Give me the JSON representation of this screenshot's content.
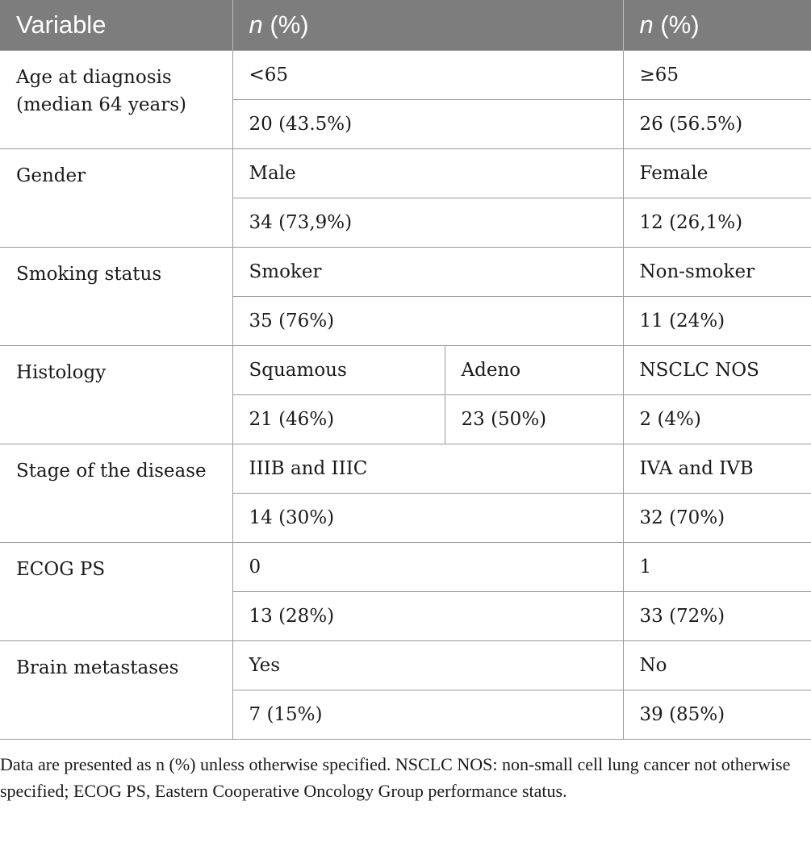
{
  "header": {
    "variable": "Variable",
    "group1_n": "n",
    "group1_pct": "(%)",
    "group2_n": "n",
    "group2_pct": "(%)"
  },
  "rows": [
    {
      "variable": "Age at diagnosis (median 64 years)",
      "categories": [
        "<65",
        "≥65"
      ],
      "values": [
        "20 (43.5%)",
        "26 (56.5%)"
      ]
    },
    {
      "variable": "Gender",
      "categories": [
        "Male",
        "Female"
      ],
      "values": [
        "34 (73,9%)",
        "12 (26,1%)"
      ]
    },
    {
      "variable": "Smoking status",
      "categories": [
        "Smoker",
        "Non-smoker"
      ],
      "values": [
        "35 (76%)",
        "11 (24%)"
      ]
    },
    {
      "variable": "Histology",
      "categories": [
        "Squamous",
        "Adeno",
        "NSCLC NOS"
      ],
      "values": [
        "21 (46%)",
        "23 (50%)",
        "2 (4%)"
      ]
    },
    {
      "variable": "Stage of the disease",
      "categories": [
        "IIIB and IIIC",
        "IVA and IVB"
      ],
      "values": [
        "14 (30%)",
        "32 (70%)"
      ]
    },
    {
      "variable": "ECOG PS",
      "categories": [
        "0",
        "1"
      ],
      "values": [
        "13 (28%)",
        "33 (72%)"
      ]
    },
    {
      "variable": "Brain metastases",
      "categories": [
        "Yes",
        "No"
      ],
      "values": [
        "7 (15%)",
        "39 (85%)"
      ]
    }
  ],
  "footnote": "Data are presented as n (%) unless otherwise specified. NSCLC NOS: non-small cell lung cancer not otherwise specified; ECOG PS, Eastern Cooperative Oncology Group performance status."
}
